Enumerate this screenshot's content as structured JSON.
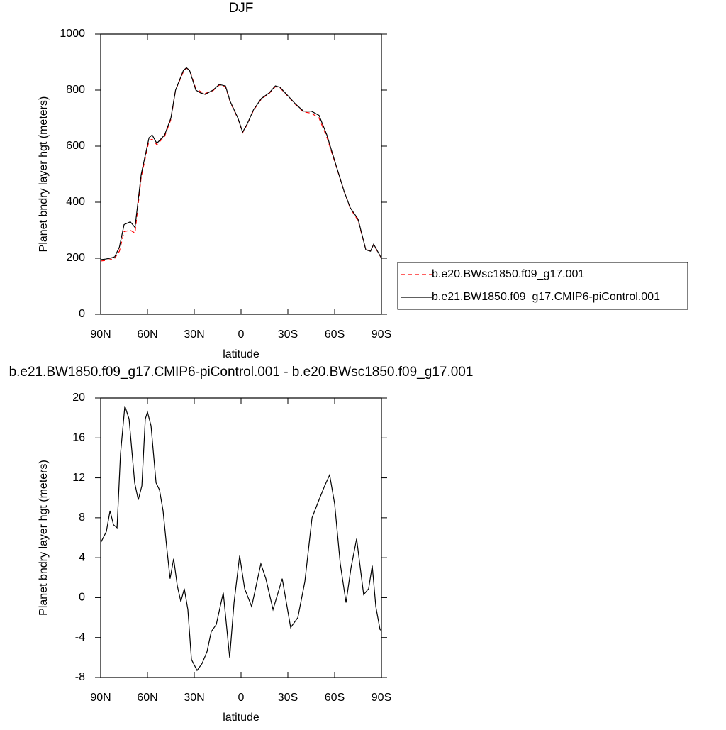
{
  "chart_data": [
    {
      "type": "line",
      "title": "DJF",
      "xlabel": "latitude",
      "ylabel": "Planet bndry layer hgt (meters)",
      "xlim": [
        90,
        -90
      ],
      "ylim": [
        0,
        1000
      ],
      "xticks": [
        {
          "value": 90,
          "label": "90N"
        },
        {
          "value": 60,
          "label": "60N"
        },
        {
          "value": 30,
          "label": "30N"
        },
        0,
        {
          "value": -30,
          "label": "30S"
        },
        {
          "value": -60,
          "label": "60S"
        },
        {
          "value": -90,
          "label": "90S"
        }
      ],
      "yticks": [
        0,
        200,
        400,
        600,
        800,
        1000
      ],
      "legend": "outside-right",
      "x": [
        90,
        87,
        84,
        81,
        78,
        75,
        71,
        68,
        64,
        59,
        57,
        54,
        49,
        45,
        42,
        37,
        35,
        33,
        29,
        26,
        23,
        18,
        14,
        10,
        7,
        2,
        -1,
        -4,
        -8,
        -13,
        -18,
        -22,
        -25,
        -30,
        -35,
        -40,
        -45,
        -50,
        -55,
        -61,
        -66,
        -70,
        -75,
        -80,
        -83,
        -85,
        -90
      ],
      "series": [
        {
          "name": "b.e20.BWsc1850.f09_g17.001",
          "color": "#ff0000",
          "style": "dashed",
          "values": [
            190,
            192,
            195,
            200,
            225,
            295,
            300,
            290,
            490,
            620,
            625,
            605,
            635,
            695,
            800,
            865,
            878,
            872,
            805,
            795,
            788,
            798,
            818,
            812,
            758,
            698,
            648,
            678,
            728,
            768,
            788,
            812,
            808,
            778,
            748,
            722,
            718,
            700,
            632,
            528,
            440,
            378,
            335,
            230,
            228,
            248,
            200
          ]
        },
        {
          "name": "b.e21.BW1850.f09_g17.CMIP6-piControl.001",
          "color": "#000000",
          "style": "solid",
          "values": [
            195,
            197,
            200,
            205,
            240,
            320,
            330,
            310,
            500,
            630,
            640,
            610,
            640,
            700,
            800,
            870,
            880,
            870,
            800,
            790,
            785,
            800,
            820,
            815,
            760,
            700,
            650,
            680,
            730,
            770,
            790,
            815,
            810,
            780,
            750,
            725,
            725,
            710,
            640,
            530,
            440,
            380,
            340,
            230,
            225,
            250,
            200
          ]
        }
      ]
    },
    {
      "type": "line",
      "title": "b.e21.BW1850.f09_g17.CMIP6-piControl.001 - b.e20.BWsc1850.f09_g17.001",
      "xlabel": "latitude",
      "ylabel": "Planet bndry layer hgt (meters)",
      "xlim": [
        90,
        -90
      ],
      "ylim": [
        -8,
        20
      ],
      "xticks": [
        {
          "value": 90,
          "label": "90N"
        },
        {
          "value": 60,
          "label": "60N"
        },
        {
          "value": 30,
          "label": "30N"
        },
        0,
        {
          "value": -30,
          "label": "30S"
        },
        {
          "value": -60,
          "label": "60S"
        },
        {
          "value": -90,
          "label": "90S"
        }
      ],
      "yticks": [
        -8,
        -4,
        0,
        4,
        8,
        12,
        16,
        20
      ],
      "color": "#000000",
      "x": [
        90,
        86.4,
        84,
        81.8,
        79.5,
        77.3,
        74.5,
        71.8,
        68.2,
        65.9,
        63.6,
        61.4,
        60,
        57.7,
        54.5,
        52.3,
        50,
        47.7,
        45.5,
        43.2,
        40.9,
        38.6,
        36.4,
        34.1,
        31.8,
        28.2,
        25,
        21.8,
        19.1,
        15.9,
        11.4,
        7.3,
        4.5,
        0.9,
        -2.3,
        -6.8,
        -12.7,
        -15.9,
        -20.5,
        -26.4,
        -31.8,
        -36.4,
        -40.9,
        -45.5,
        -50,
        -53.6,
        -56.8,
        -60,
        -63.6,
        -67.3,
        -70.5,
        -74.1,
        -78.6,
        -81.8,
        -84.1,
        -86.4,
        -89.1,
        -90
      ],
      "values": [
        5.5,
        6.6,
        8.7,
        7.3,
        7.0,
        14.4,
        19.2,
        17.9,
        11.5,
        9.8,
        11.2,
        17.9,
        18.6,
        17.2,
        11.5,
        10.8,
        8.7,
        5.1,
        1.9,
        3.9,
        1.2,
        -0.4,
        0.9,
        -1.2,
        -6.2,
        -7.3,
        -6.6,
        -5.4,
        -3.4,
        -2.7,
        0.5,
        -6.0,
        -0.5,
        4.2,
        0.9,
        -0.9,
        3.4,
        1.9,
        -1.2,
        1.9,
        -3.0,
        -2.0,
        1.6,
        8.0,
        9.8,
        11.2,
        12.3,
        9.4,
        3.4,
        -0.5,
        3.0,
        5.9,
        0.3,
        0.9,
        3.2,
        -0.9,
        -3.2,
        -3.3
      ]
    }
  ]
}
